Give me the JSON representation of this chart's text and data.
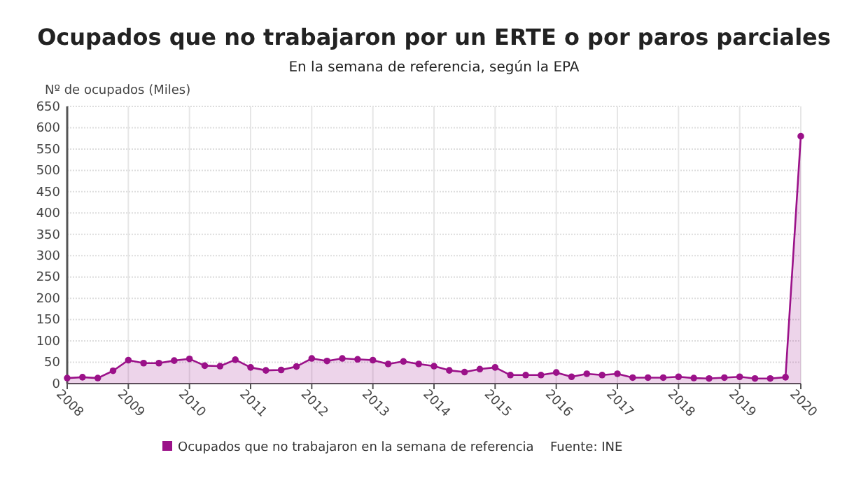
{
  "chart_data": {
    "type": "area",
    "title": "Ocupados que no trabajaron por un ERTE o por paros parciales",
    "subtitle": "En la semana de referencia, según la EPA",
    "ylabel": "Nº de ocupados (Miles)",
    "x": [
      2008,
      2008.25,
      2008.5,
      2008.75,
      2009,
      2009.25,
      2009.5,
      2009.75,
      2010,
      2010.25,
      2010.5,
      2010.75,
      2011,
      2011.25,
      2011.5,
      2011.75,
      2012,
      2012.25,
      2012.5,
      2012.75,
      2013,
      2013.25,
      2013.5,
      2013.75,
      2014,
      2014.25,
      2014.5,
      2014.75,
      2015,
      2015.25,
      2015.5,
      2015.75,
      2016,
      2016.25,
      2016.5,
      2016.75,
      2017,
      2017.25,
      2017.5,
      2017.75,
      2018,
      2018.25,
      2018.5,
      2018.75,
      2019,
      2019.25,
      2019.5,
      2019.75,
      2020
    ],
    "series": [
      {
        "name": "Ocupados que no trabajaron en la semana de referencia",
        "color": "#9b1189",
        "values": [
          13,
          15,
          13,
          30,
          55,
          48,
          48,
          54,
          58,
          42,
          41,
          56,
          38,
          31,
          32,
          40,
          59,
          53,
          59,
          57,
          55,
          46,
          52,
          46,
          41,
          31,
          27,
          34,
          38,
          20,
          20,
          20,
          26,
          16,
          23,
          20,
          23,
          14,
          14,
          14,
          16,
          13,
          12,
          14,
          16,
          12,
          12,
          15,
          580
        ]
      }
    ],
    "xlim": [
      2008,
      2020
    ],
    "xticks": [
      2008,
      2009,
      2010,
      2011,
      2012,
      2013,
      2014,
      2015,
      2016,
      2017,
      2018,
      2019,
      2020
    ],
    "ylim": [
      0,
      650
    ],
    "yticks": [
      0,
      50,
      100,
      150,
      200,
      250,
      300,
      350,
      400,
      450,
      500,
      550,
      600,
      650
    ],
    "grid": true,
    "legend": "bottom",
    "marker": "circle",
    "line_style": "solid",
    "annotations": [
      "Fuente: INE"
    ]
  }
}
